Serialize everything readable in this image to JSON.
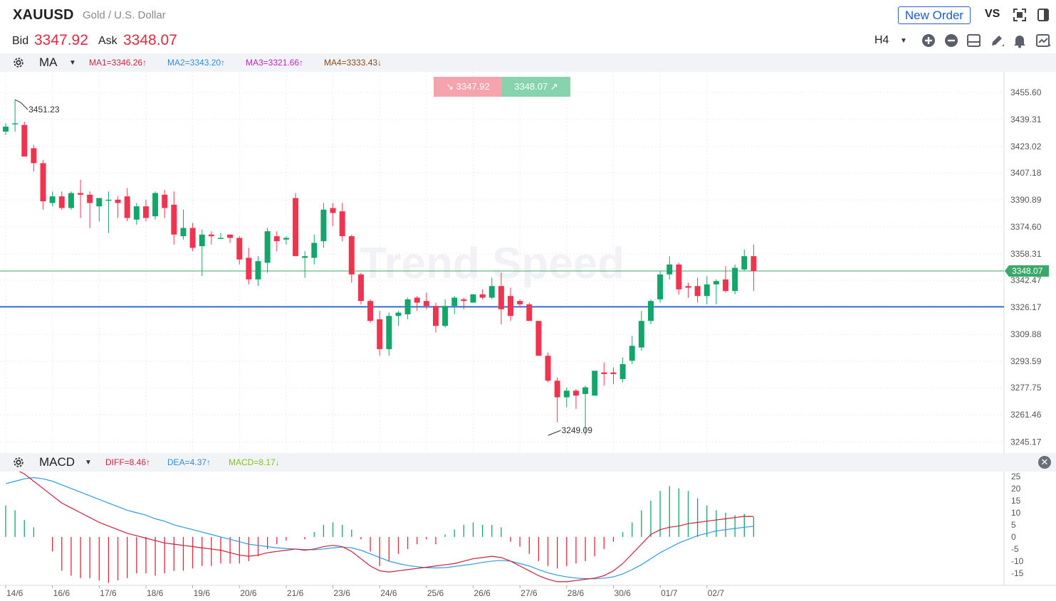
{
  "header": {
    "symbol": "XAUUSD",
    "description": "Gold / U.S. Dollar",
    "new_order_label": "New Order",
    "vs_label": "VS",
    "bid_label": "Bid",
    "bid_value": "3347.92",
    "ask_label": "Ask",
    "ask_value": "3348.07",
    "timeframe": "H4"
  },
  "icons": [
    "fullscreen-icon",
    "sidebar-icon",
    "zoom-in-icon",
    "zoom-out-icon",
    "layout-icon",
    "pencil-icon",
    "alert-bell-icon",
    "indicator-chart-icon",
    "settings-gear-icon",
    "close-icon"
  ],
  "colors": {
    "up": "#12a66a",
    "down": "#f0344f",
    "ma_line": "#3aa86b",
    "support_line": "#2f6fd0",
    "diff": "#c8213a",
    "dea": "#2c9be0",
    "macd_pos": "#12a66a",
    "macd_neg": "#e0283f"
  },
  "main_indicator": {
    "name": "MA",
    "values": [
      {
        "text": "MA1=3346.26↑",
        "color": "#d0243c"
      },
      {
        "text": "MA2=3343.20↑",
        "color": "#2c8de0"
      },
      {
        "text": "MA3=3321.66↑",
        "color": "#c21fcf"
      },
      {
        "text": "MA4=3333.43↓",
        "color": "#8a4a1a"
      }
    ]
  },
  "sub_indicator": {
    "name": "MACD",
    "values": [
      {
        "text": "DIFF=8.46↑",
        "color": "#d0243c"
      },
      {
        "text": "DEA=4.37↑",
        "color": "#2c8de0"
      },
      {
        "text": "MACD=8.17↓",
        "color": "#7fbf2a"
      }
    ]
  },
  "quote_badges": {
    "sell": "3347.92",
    "buy": "3348.07",
    "sell_arrow": "↘",
    "buy_arrow": "↗"
  },
  "watermark": "Trend Speed",
  "chart_data": [
    {
      "type": "candlestick",
      "title": "",
      "timeframe": "H4",
      "price_axis_ticks": [
        "3455.60",
        "3439.31",
        "3423.02",
        "3407.18",
        "3390.89",
        "3374.60",
        "3358.31",
        "3342.47",
        "3326.17",
        "3309.88",
        "3293.59",
        "3277.75",
        "3261.46",
        "3245.17"
      ],
      "price_range": [
        3238,
        3468
      ],
      "current_price_label": "3348.07",
      "current_price": 3348.07,
      "support_level": 3326.5,
      "annotations": [
        {
          "text": "3451.23",
          "price": 3451.23,
          "candle_index": 1
        },
        {
          "text": "3249.09",
          "price": 3249.09,
          "candle_index": 58
        }
      ],
      "candles": [
        {
          "o": 3432,
          "h": 3437,
          "l": 3430,
          "c": 3435
        },
        {
          "o": 3437,
          "h": 3451.23,
          "l": 3432,
          "c": 3437
        },
        {
          "o": 3436,
          "h": 3438,
          "l": 3418,
          "c": 3417
        },
        {
          "o": 3422,
          "h": 3424,
          "l": 3408,
          "c": 3413
        },
        {
          "o": 3413,
          "h": 3415,
          "l": 3385,
          "c": 3390
        },
        {
          "o": 3389,
          "h": 3396,
          "l": 3387,
          "c": 3393
        },
        {
          "o": 3393,
          "h": 3396,
          "l": 3385,
          "c": 3386
        },
        {
          "o": 3386,
          "h": 3396,
          "l": 3385,
          "c": 3395
        },
        {
          "o": 3395,
          "h": 3403,
          "l": 3380,
          "c": 3394
        },
        {
          "o": 3394,
          "h": 3396,
          "l": 3374,
          "c": 3389
        },
        {
          "o": 3387,
          "h": 3390,
          "l": 3378,
          "c": 3392
        },
        {
          "o": 3391,
          "h": 3396,
          "l": 3371,
          "c": 3391
        },
        {
          "o": 3391,
          "h": 3393,
          "l": 3380,
          "c": 3389
        },
        {
          "o": 3393,
          "h": 3398,
          "l": 3378,
          "c": 3380
        },
        {
          "o": 3379,
          "h": 3389,
          "l": 3376,
          "c": 3387
        },
        {
          "o": 3387,
          "h": 3391,
          "l": 3378,
          "c": 3380
        },
        {
          "o": 3381,
          "h": 3396,
          "l": 3379,
          "c": 3395
        },
        {
          "o": 3394,
          "h": 3397,
          "l": 3380,
          "c": 3386
        },
        {
          "o": 3388,
          "h": 3396,
          "l": 3364,
          "c": 3370
        },
        {
          "o": 3369,
          "h": 3385,
          "l": 3367,
          "c": 3374
        },
        {
          "o": 3374,
          "h": 3377,
          "l": 3360,
          "c": 3362
        },
        {
          "o": 3363,
          "h": 3373,
          "l": 3345,
          "c": 3370
        },
        {
          "o": 3370,
          "h": 3372,
          "l": 3364,
          "c": 3369
        },
        {
          "o": 3368,
          "h": 3371,
          "l": 3368,
          "c": 3368
        },
        {
          "o": 3370,
          "h": 3370,
          "l": 3365,
          "c": 3368
        },
        {
          "o": 3368,
          "h": 3369,
          "l": 3352,
          "c": 3355
        },
        {
          "o": 3356,
          "h": 3362,
          "l": 3340,
          "c": 3343
        },
        {
          "o": 3343,
          "h": 3357,
          "l": 3339,
          "c": 3354
        },
        {
          "o": 3353,
          "h": 3374,
          "l": 3347,
          "c": 3372
        },
        {
          "o": 3369,
          "h": 3372,
          "l": 3360,
          "c": 3366
        },
        {
          "o": 3367,
          "h": 3369,
          "l": 3364,
          "c": 3368
        },
        {
          "o": 3392,
          "h": 3395,
          "l": 3357,
          "c": 3357
        },
        {
          "o": 3356,
          "h": 3360,
          "l": 3344,
          "c": 3357
        },
        {
          "o": 3356,
          "h": 3370,
          "l": 3352,
          "c": 3365
        },
        {
          "o": 3366,
          "h": 3389,
          "l": 3362,
          "c": 3385
        },
        {
          "o": 3386,
          "h": 3389,
          "l": 3375,
          "c": 3383
        },
        {
          "o": 3384,
          "h": 3389,
          "l": 3366,
          "c": 3369
        },
        {
          "o": 3369,
          "h": 3370,
          "l": 3341,
          "c": 3346
        },
        {
          "o": 3346,
          "h": 3347,
          "l": 3328,
          "c": 3330
        },
        {
          "o": 3330,
          "h": 3331,
          "l": 3317,
          "c": 3318
        },
        {
          "o": 3319,
          "h": 3324,
          "l": 3297,
          "c": 3301
        },
        {
          "o": 3301,
          "h": 3323,
          "l": 3297,
          "c": 3321
        },
        {
          "o": 3321,
          "h": 3324,
          "l": 3315,
          "c": 3323
        },
        {
          "o": 3322,
          "h": 3332,
          "l": 3319,
          "c": 3331
        },
        {
          "o": 3332,
          "h": 3333,
          "l": 3324,
          "c": 3329
        },
        {
          "o": 3330,
          "h": 3335,
          "l": 3325,
          "c": 3327
        },
        {
          "o": 3327,
          "h": 3329,
          "l": 3311,
          "c": 3315
        },
        {
          "o": 3315,
          "h": 3331,
          "l": 3314,
          "c": 3327
        },
        {
          "o": 3327,
          "h": 3333,
          "l": 3322,
          "c": 3332
        },
        {
          "o": 3331,
          "h": 3332,
          "l": 3325,
          "c": 3330
        },
        {
          "o": 3329,
          "h": 3334,
          "l": 3329,
          "c": 3334
        },
        {
          "o": 3334,
          "h": 3337,
          "l": 3331,
          "c": 3332
        },
        {
          "o": 3332,
          "h": 3344,
          "l": 3331,
          "c": 3339
        },
        {
          "o": 3339,
          "h": 3347,
          "l": 3316,
          "c": 3325
        },
        {
          "o": 3333,
          "h": 3338,
          "l": 3318,
          "c": 3321
        },
        {
          "o": 3330,
          "h": 3331,
          "l": 3326,
          "c": 3328
        },
        {
          "o": 3328,
          "h": 3329,
          "l": 3318,
          "c": 3318
        },
        {
          "o": 3318,
          "h": 3317,
          "l": 3298,
          "c": 3297
        },
        {
          "o": 3297,
          "h": 3299,
          "l": 3281,
          "c": 3282
        },
        {
          "o": 3282,
          "h": 3284,
          "l": 3257,
          "c": 3272
        },
        {
          "o": 3272,
          "h": 3278,
          "l": 3266,
          "c": 3276
        },
        {
          "o": 3276,
          "h": 3277,
          "l": 3265,
          "c": 3273
        },
        {
          "o": 3274,
          "h": 3279,
          "l": 3249.09,
          "c": 3278
        },
        {
          "o": 3273,
          "h": 3288,
          "l": 3273,
          "c": 3288
        },
        {
          "o": 3287,
          "h": 3293,
          "l": 3279,
          "c": 3286
        },
        {
          "o": 3287,
          "h": 3290,
          "l": 3280,
          "c": 3286
        },
        {
          "o": 3283,
          "h": 3296,
          "l": 3281,
          "c": 3292
        },
        {
          "o": 3294,
          "h": 3309,
          "l": 3292,
          "c": 3303
        },
        {
          "o": 3302,
          "h": 3324,
          "l": 3300,
          "c": 3318
        },
        {
          "o": 3318,
          "h": 3331,
          "l": 3316,
          "c": 3330
        },
        {
          "o": 3331,
          "h": 3348,
          "l": 3329,
          "c": 3346
        },
        {
          "o": 3346,
          "h": 3357,
          "l": 3343,
          "c": 3352
        },
        {
          "o": 3352,
          "h": 3353,
          "l": 3334,
          "c": 3337
        },
        {
          "o": 3339,
          "h": 3341,
          "l": 3332,
          "c": 3338
        },
        {
          "o": 3339,
          "h": 3344,
          "l": 3329,
          "c": 3333
        },
        {
          "o": 3333,
          "h": 3345,
          "l": 3328,
          "c": 3340
        },
        {
          "o": 3340,
          "h": 3343,
          "l": 3328,
          "c": 3342
        },
        {
          "o": 3343,
          "h": 3351,
          "l": 3335,
          "c": 3336
        },
        {
          "o": 3336,
          "h": 3352,
          "l": 3334,
          "c": 3350
        },
        {
          "o": 3349,
          "h": 3361,
          "l": 3348,
          "c": 3357
        },
        {
          "o": 3357,
          "h": 3364,
          "l": 3336,
          "c": 3347.92
        }
      ]
    },
    {
      "type": "line",
      "title": "",
      "indicator": "MACD",
      "y_axis_ticks": [
        "25",
        "20",
        "15",
        "10",
        "5",
        "0",
        "-5",
        "-10",
        "-15"
      ],
      "ylim": [
        -20,
        27
      ],
      "x_axis_labels": [
        "14/6",
        "16/6",
        "17/6",
        "18/6",
        "19/6",
        "20/6",
        "21/6",
        "23/6",
        "24/6",
        "25/6",
        "26/6",
        "27/6",
        "28/6",
        "30/6",
        "01/7",
        "02/7"
      ],
      "x_label_candle_index": [
        0,
        5,
        10,
        15,
        20,
        25,
        30,
        35,
        40,
        45,
        50,
        55,
        60,
        65,
        70,
        75
      ],
      "series": [
        {
          "name": "DIFF",
          "values": [
            29,
            28,
            26,
            23,
            20,
            17,
            14,
            12,
            10,
            8,
            6,
            4.5,
            3,
            1.5,
            0.5,
            -0.5,
            -1.5,
            -2.5,
            -3,
            -3.5,
            -4,
            -4.5,
            -5,
            -5.5,
            -6.5,
            -7.5,
            -8,
            -7.5,
            -6.5,
            -6,
            -5.5,
            -5,
            -5.5,
            -5,
            -4,
            -3.5,
            -4,
            -6,
            -9,
            -12,
            -14,
            -14.5,
            -14,
            -13.5,
            -13,
            -12.5,
            -12,
            -11.5,
            -11,
            -10,
            -9,
            -8.5,
            -8,
            -8.5,
            -10,
            -12,
            -14,
            -16,
            -17.5,
            -18.5,
            -18.5,
            -18,
            -17.5,
            -17,
            -16,
            -14,
            -11,
            -7,
            -3,
            1,
            3,
            4,
            4.5,
            5.5,
            6,
            6.5,
            7,
            7.5,
            8,
            8.5,
            8.46
          ]
        },
        {
          "name": "DEA",
          "values": [
            22,
            23,
            24,
            24.5,
            24,
            23,
            21.5,
            20,
            18.5,
            17,
            15.5,
            14,
            12.5,
            11,
            10,
            9,
            7.5,
            6.5,
            5,
            4,
            3,
            2,
            1,
            0,
            -1,
            -2,
            -3,
            -3.5,
            -4,
            -4.5,
            -4.8,
            -5,
            -5.2,
            -5.3,
            -5,
            -4.5,
            -4.2,
            -4.5,
            -5.5,
            -7,
            -8.5,
            -10,
            -11,
            -11.8,
            -12.3,
            -12.7,
            -12.8,
            -12.7,
            -12.2,
            -11.7,
            -11.2,
            -10.5,
            -10,
            -9.7,
            -10,
            -11,
            -12,
            -13.5,
            -14.8,
            -15.8,
            -16.5,
            -17,
            -17.2,
            -17.3,
            -17,
            -16.5,
            -15.3,
            -13.5,
            -11.5,
            -9,
            -6.5,
            -4.5,
            -2.5,
            -1,
            0.5,
            1.5,
            2.5,
            3,
            3.5,
            4,
            4.37
          ]
        },
        {
          "name": "MACD",
          "values": [
            13,
            11,
            7,
            4,
            0,
            -6,
            -14,
            -16,
            -17,
            -17,
            -18,
            -19,
            -18,
            -17,
            -15,
            -15,
            -16,
            -15,
            -14,
            -14,
            -13,
            -12,
            -12,
            -11,
            -11,
            -11,
            -10,
            -8,
            -5,
            -3,
            -1.5,
            0,
            -1,
            2,
            5,
            6,
            5,
            3,
            -1,
            -6,
            -12,
            -10,
            -7,
            -5,
            -3,
            -1,
            -3,
            1,
            3,
            5,
            6,
            5,
            5,
            4,
            -2,
            -4,
            -7,
            -10,
            -12,
            -13,
            -12,
            -11,
            -10,
            -8,
            -5,
            -2,
            2,
            6,
            11,
            15,
            19,
            21,
            20,
            19,
            16,
            13,
            11,
            10,
            9,
            9.5,
            8.17
          ]
        }
      ]
    }
  ]
}
